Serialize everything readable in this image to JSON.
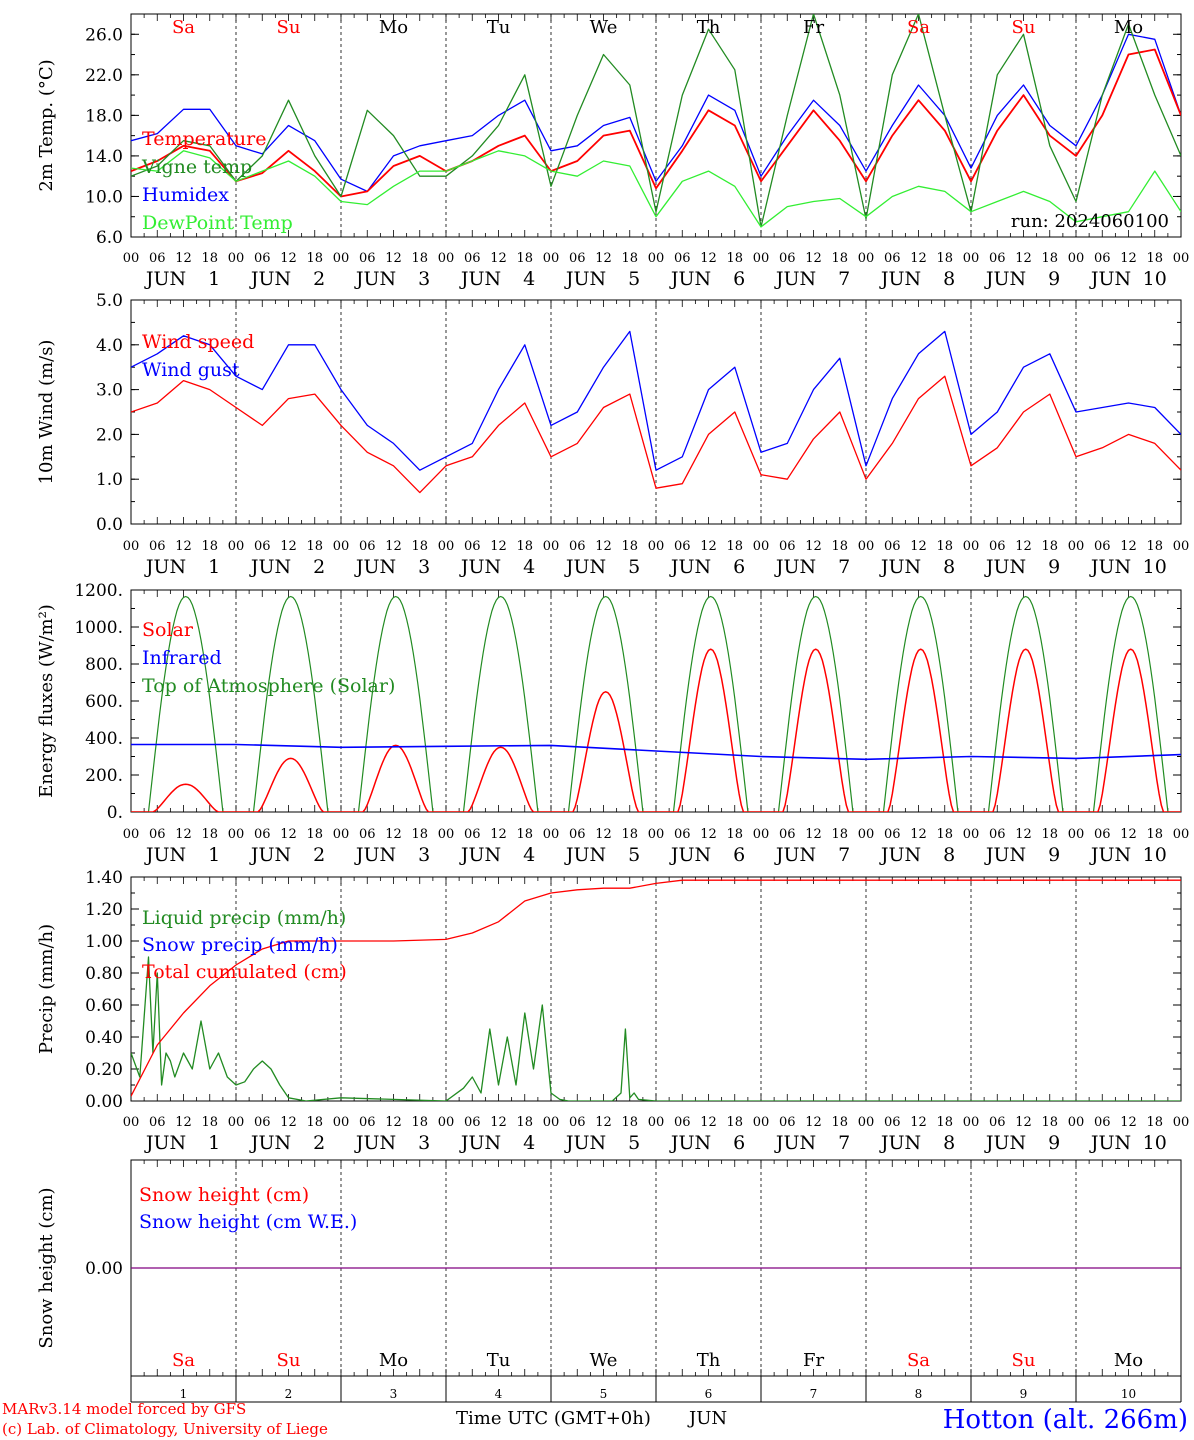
{
  "footer": {
    "model_line": "MARv3.14 model forced by GFS",
    "lab_line": "(c) Lab. of Climatology, University of Liege",
    "station": "Hotton (alt. 266m)",
    "time_axis_label": "Time UTC (GMT+0h)",
    "month": "JUN"
  },
  "days": [
    "1",
    "2",
    "3",
    "4",
    "5",
    "6",
    "7",
    "8",
    "9",
    "10"
  ],
  "weekdays": [
    "Sa",
    "Su",
    "Mo",
    "Tu",
    "We",
    "Th",
    "Fr",
    "Sa",
    "Su",
    "Mo"
  ],
  "weekday_colors": [
    "#ff0000",
    "#ff0000",
    "#000000",
    "#000000",
    "#000000",
    "#000000",
    "#000000",
    "#ff0000",
    "#ff0000",
    "#000000"
  ],
  "hour_ticks": [
    "00",
    "06",
    "12",
    "18"
  ],
  "final_hour_tick": "00",
  "colors": {
    "red": "#ff0000",
    "green": "#228b22",
    "blue": "#0000ff",
    "lightgreen": "#33ee33",
    "purple": "#800080"
  },
  "chart_data": [
    {
      "id": "temp",
      "type": "line",
      "ylabel": "2m Temp. (°C)",
      "ylim": [
        6,
        28
      ],
      "yticks": [
        "6.0",
        "10.0",
        "14.0",
        "18.0",
        "22.0",
        "26.0"
      ],
      "xlabel": "",
      "x_unit": "hours since 00 UTC JUN 1",
      "xlim": [
        0,
        240
      ],
      "grid": "vertical dashed at day boundaries",
      "annotation": "run: 2024060100",
      "legend": [
        {
          "label": "Temperature",
          "color": "#ff0000"
        },
        {
          "label": "Vigne temp",
          "color": "#228b22"
        },
        {
          "label": "Humidex",
          "color": "#0000ff"
        },
        {
          "label": "DewPoint Temp",
          "color": "#33ee33"
        }
      ],
      "series": [
        {
          "name": "Humidex",
          "color": "#0000ff",
          "x": [
            0,
            6,
            12,
            18,
            24,
            30,
            36,
            42,
            48,
            54,
            60,
            66,
            72,
            78,
            84,
            90,
            96,
            102,
            108,
            114,
            120,
            126,
            132,
            138,
            144,
            150,
            156,
            162,
            168,
            174,
            180,
            186,
            192,
            198,
            204,
            210,
            216,
            222,
            228,
            234,
            240
          ],
          "y": [
            15.5,
            16.2,
            18.6,
            18.6,
            15.0,
            14.2,
            17.0,
            15.5,
            11.7,
            10.5,
            14.0,
            15.0,
            15.5,
            16.0,
            18.0,
            19.5,
            14.5,
            15.0,
            17.0,
            17.8,
            11.5,
            15.0,
            20.0,
            18.5,
            12.0,
            16.0,
            19.5,
            17.0,
            12.5,
            17.0,
            21.0,
            18.0,
            12.8,
            18.0,
            21.0,
            17.0,
            15.0,
            20.0,
            26.0,
            25.5,
            18.0
          ]
        },
        {
          "name": "Temperature",
          "color": "#ff0000",
          "x": [
            0,
            6,
            12,
            18,
            24,
            30,
            36,
            42,
            48,
            54,
            60,
            66,
            72,
            78,
            84,
            90,
            96,
            102,
            108,
            114,
            120,
            126,
            132,
            138,
            144,
            150,
            156,
            162,
            168,
            174,
            180,
            186,
            192,
            198,
            204,
            210,
            216,
            222,
            228,
            234,
            240
          ],
          "y": [
            12.5,
            13.5,
            15.0,
            14.5,
            11.5,
            12.3,
            14.5,
            12.5,
            10.0,
            10.5,
            13.0,
            14.0,
            12.5,
            13.5,
            15.0,
            16.0,
            12.5,
            13.5,
            16.0,
            16.5,
            10.8,
            14.5,
            18.5,
            17.0,
            11.5,
            15.0,
            18.5,
            15.5,
            11.5,
            16.0,
            19.5,
            16.5,
            11.5,
            16.5,
            20.0,
            16.0,
            14.0,
            18.0,
            24.0,
            24.5,
            18.0
          ]
        },
        {
          "name": "Vigne temp",
          "color": "#228b22",
          "x": [
            0,
            6,
            12,
            18,
            24,
            30,
            36,
            42,
            48,
            54,
            60,
            66,
            72,
            78,
            84,
            90,
            96,
            102,
            108,
            114,
            120,
            126,
            132,
            138,
            144,
            150,
            156,
            162,
            168,
            174,
            180,
            186,
            192,
            198,
            204,
            210,
            216,
            222,
            228,
            234,
            240
          ],
          "y": [
            12.0,
            13.0,
            15.5,
            15.0,
            11.5,
            14.0,
            19.5,
            14.0,
            10.0,
            18.5,
            16.0,
            12.0,
            12.0,
            14.0,
            17.0,
            22.0,
            11.0,
            18.0,
            24.0,
            21.0,
            8.5,
            20.0,
            26.5,
            22.5,
            7.0,
            18.0,
            28.0,
            20.0,
            7.8,
            22.0,
            28.0,
            18.0,
            8.5,
            22.0,
            26.0,
            15.0,
            9.5,
            20.0,
            27.0,
            20.0,
            14.0
          ]
        },
        {
          "name": "DewPoint Temp",
          "color": "#33ee33",
          "x": [
            0,
            6,
            12,
            18,
            24,
            30,
            36,
            42,
            48,
            54,
            60,
            66,
            72,
            78,
            84,
            90,
            96,
            102,
            108,
            114,
            120,
            126,
            132,
            138,
            144,
            150,
            156,
            162,
            168,
            174,
            180,
            186,
            192,
            198,
            204,
            210,
            216,
            222,
            228,
            234,
            240
          ],
          "y": [
            12.8,
            12.5,
            14.5,
            13.8,
            11.5,
            12.5,
            13.5,
            12.0,
            9.5,
            9.2,
            11.0,
            12.5,
            12.5,
            13.5,
            14.5,
            14.0,
            12.5,
            12.0,
            13.5,
            13.0,
            8.0,
            11.5,
            12.5,
            11.0,
            7.0,
            9.0,
            9.5,
            9.8,
            8.0,
            10.0,
            11.0,
            10.5,
            8.5,
            9.5,
            10.5,
            9.5,
            7.5,
            8.0,
            8.5,
            12.5,
            8.5
          ]
        }
      ]
    },
    {
      "id": "wind",
      "type": "line",
      "ylabel": "10m Wind (m/s)",
      "ylim": [
        0,
        5
      ],
      "yticks": [
        "0.0",
        "1.0",
        "2.0",
        "3.0",
        "4.0",
        "5.0"
      ],
      "x_unit": "hours since 00 UTC JUN 1",
      "xlim": [
        0,
        240
      ],
      "legend": [
        {
          "label": "Wind speed",
          "color": "#ff0000"
        },
        {
          "label": "Wind gust",
          "color": "#0000ff"
        }
      ],
      "series": [
        {
          "name": "Wind gust",
          "color": "#0000ff",
          "x": [
            0,
            6,
            12,
            18,
            24,
            30,
            36,
            42,
            48,
            54,
            60,
            66,
            72,
            78,
            84,
            90,
            96,
            102,
            108,
            114,
            120,
            126,
            132,
            138,
            144,
            150,
            156,
            162,
            168,
            174,
            180,
            186,
            192,
            198,
            204,
            210,
            216,
            222,
            228,
            234,
            240
          ],
          "y": [
            3.5,
            3.8,
            4.2,
            4.0,
            3.3,
            3.0,
            4.0,
            4.0,
            3.0,
            2.2,
            1.8,
            1.2,
            1.5,
            1.8,
            3.0,
            4.0,
            2.2,
            2.5,
            3.5,
            4.3,
            1.2,
            1.5,
            3.0,
            3.5,
            1.6,
            1.8,
            3.0,
            3.7,
            1.3,
            2.8,
            3.8,
            4.3,
            2.0,
            2.5,
            3.5,
            3.8,
            2.5,
            2.6,
            2.7,
            2.6,
            2.0
          ]
        },
        {
          "name": "Wind speed",
          "color": "#ff0000",
          "x": [
            0,
            6,
            12,
            18,
            24,
            30,
            36,
            42,
            48,
            54,
            60,
            66,
            72,
            78,
            84,
            90,
            96,
            102,
            108,
            114,
            120,
            126,
            132,
            138,
            144,
            150,
            156,
            162,
            168,
            174,
            180,
            186,
            192,
            198,
            204,
            210,
            216,
            222,
            228,
            234,
            240
          ],
          "y": [
            2.5,
            2.7,
            3.2,
            3.0,
            2.6,
            2.2,
            2.8,
            2.9,
            2.2,
            1.6,
            1.3,
            0.7,
            1.3,
            1.5,
            2.2,
            2.7,
            1.5,
            1.8,
            2.6,
            2.9,
            0.8,
            0.9,
            2.0,
            2.5,
            1.1,
            1.0,
            1.9,
            2.5,
            1.0,
            1.8,
            2.8,
            3.3,
            1.3,
            1.7,
            2.5,
            2.9,
            1.5,
            1.7,
            2.0,
            1.8,
            1.2
          ]
        }
      ]
    },
    {
      "id": "energy",
      "type": "line",
      "ylabel": "Energy fluxes (W/m²)",
      "ylim": [
        0,
        1200
      ],
      "yticks": [
        "0.",
        "200.",
        "400.",
        "600.",
        "800.",
        "1000.",
        "1200."
      ],
      "x_unit": "hours since 00 UTC JUN 1",
      "xlim": [
        0,
        240
      ],
      "legend": [
        {
          "label": "Solar",
          "color": "#ff0000"
        },
        {
          "label": "Infrared",
          "color": "#0000ff"
        },
        {
          "label": "Top of Atmosphere (Solar)",
          "color": "#228b22"
        }
      ],
      "toa_peak": 1165,
      "toa_hours": [
        4,
        21
      ],
      "solar_daily_peaks": [
        150,
        290,
        360,
        350,
        650,
        880,
        880,
        880,
        880,
        880
      ],
      "infrared": {
        "x": [
          0,
          24,
          48,
          72,
          96,
          120,
          144,
          168,
          192,
          216,
          240
        ],
        "y": [
          365,
          365,
          350,
          355,
          360,
          330,
          300,
          285,
          300,
          290,
          310
        ]
      }
    },
    {
      "id": "precip",
      "type": "line",
      "ylabel": "Precip (mm/h)",
      "ylim": [
        0,
        1.4
      ],
      "yticks": [
        "0.00",
        "0.20",
        "0.40",
        "0.60",
        "0.80",
        "1.00",
        "1.20",
        "1.40"
      ],
      "x_unit": "hours since 00 UTC JUN 1",
      "xlim": [
        0,
        240
      ],
      "legend": [
        {
          "label": "Liquid precip (mm/h)",
          "color": "#228b22"
        },
        {
          "label": "Snow precip (mm/h)",
          "color": "#0000ff"
        },
        {
          "label": "Total cumulated (cm)",
          "color": "#ff0000"
        }
      ],
      "series": [
        {
          "name": "Liquid precip (mm/h)",
          "color": "#228b22",
          "x": [
            0,
            2,
            4,
            5,
            6,
            7,
            8,
            9,
            10,
            12,
            14,
            16,
            18,
            19,
            20,
            22,
            24,
            26,
            28,
            30,
            32,
            34,
            36,
            40,
            48,
            60,
            72,
            76,
            78,
            80,
            82,
            84,
            86,
            88,
            90,
            92,
            94,
            96,
            98,
            100,
            110,
            112,
            113,
            114,
            115,
            116,
            120,
            240
          ],
          "y": [
            0.3,
            0.15,
            0.9,
            0.3,
            0.8,
            0.1,
            0.3,
            0.25,
            0.15,
            0.3,
            0.2,
            0.5,
            0.2,
            0.25,
            0.3,
            0.15,
            0.1,
            0.12,
            0.2,
            0.25,
            0.2,
            0.1,
            0.02,
            0.0,
            0.02,
            0.01,
            0.0,
            0.08,
            0.15,
            0.05,
            0.45,
            0.1,
            0.4,
            0.1,
            0.55,
            0.2,
            0.6,
            0.05,
            0.01,
            0.0,
            0.0,
            0.05,
            0.45,
            0.02,
            0.05,
            0.01,
            0.0,
            0.0
          ]
        },
        {
          "name": "Total cumulated (cm)",
          "color": "#ff0000",
          "x": [
            0,
            6,
            12,
            18,
            24,
            30,
            36,
            42,
            48,
            60,
            72,
            78,
            84,
            90,
            96,
            102,
            108,
            114,
            120,
            126,
            240
          ],
          "y": [
            0.03,
            0.35,
            0.55,
            0.72,
            0.85,
            0.95,
            1.0,
            1.0,
            1.0,
            1.0,
            1.01,
            1.05,
            1.12,
            1.25,
            1.3,
            1.32,
            1.33,
            1.33,
            1.36,
            1.38,
            1.38
          ]
        }
      ]
    },
    {
      "id": "snow",
      "type": "line",
      "ylabel": "Snow height (cm)",
      "ylim": [
        -1,
        1
      ],
      "yticks": [
        "0.00"
      ],
      "x_unit": "hours since 00 UTC JUN 1",
      "xlim": [
        0,
        240
      ],
      "legend": [
        {
          "label": "Snow height (cm)",
          "color": "#ff0000"
        },
        {
          "label": "Snow height (cm W.E.)",
          "color": "#0000ff"
        }
      ],
      "series": [
        {
          "name": "Snow height (cm)",
          "color": "#800080",
          "x": [
            0,
            240
          ],
          "y": [
            0,
            0
          ]
        }
      ]
    }
  ]
}
